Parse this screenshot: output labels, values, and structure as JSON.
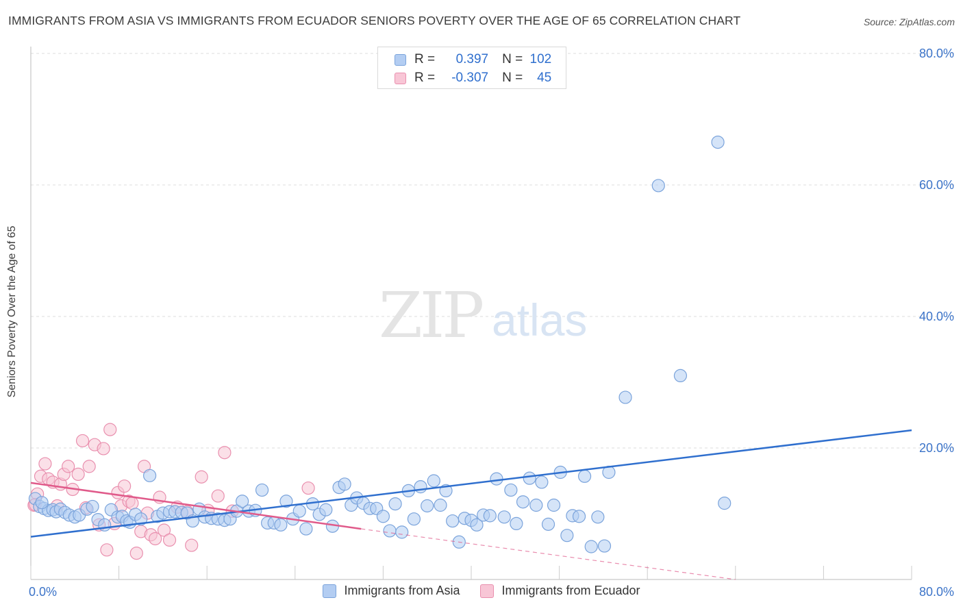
{
  "title": "IMMIGRANTS FROM ASIA VS IMMIGRANTS FROM ECUADOR SENIORS POVERTY OVER THE AGE OF 65 CORRELATION CHART",
  "source": "Source: ZipAtlas.com",
  "watermark": {
    "zip": "ZIP",
    "atlas": "atlas"
  },
  "stats": [
    {
      "r_label": "R =",
      "r_value": "0.397",
      "n_label": "N =",
      "n_value": "102"
    },
    {
      "r_label": "R =",
      "r_value": "-0.307",
      "n_label": "N =",
      "n_value": "45"
    }
  ],
  "legend": [
    {
      "label": "Immigrants from Asia"
    },
    {
      "label": "Immigrants from Ecuador"
    }
  ],
  "colors": {
    "asia_fill": "#b3cdf2",
    "asia_stroke": "#7aa3db",
    "asia_line": "#2f6fce",
    "ecuador_fill": "#f8c6d6",
    "ecuador_stroke": "#e98fae",
    "ecuador_line": "#e05a8a",
    "tick_text": "#3b73c8",
    "grid": "#dddddd"
  },
  "chart_data": {
    "type": "scatter",
    "title": "IMMIGRANTS FROM ASIA VS IMMIGRANTS FROM ECUADOR SENIORS POVERTY OVER THE AGE OF 65 CORRELATION CHART",
    "xlabel": "",
    "ylabel": "Seniors Poverty Over the Age of 65",
    "xlim": [
      0,
      80
    ],
    "ylim": [
      0,
      80
    ],
    "x_tick_labels": [
      "0.0%",
      "80.0%"
    ],
    "y_tick_labels": [
      "20.0%",
      "40.0%",
      "60.0%",
      "80.0%"
    ],
    "y_ticks": [
      20,
      40,
      60,
      80
    ],
    "legend_position": "bottom",
    "series": [
      {
        "name": "Immigrants from Asia",
        "r": 0.397,
        "n": 102,
        "trend": {
          "x": [
            0,
            80
          ],
          "y": [
            6.5,
            22.7
          ],
          "style": "solid"
        },
        "points": [
          [
            0.4,
            12.3
          ],
          [
            0.8,
            11.1
          ],
          [
            1.2,
            10.8
          ],
          [
            1.6,
            10.5
          ],
          [
            2.0,
            10.6
          ],
          [
            2.3,
            10.3
          ],
          [
            2.7,
            10.7
          ],
          [
            3.1,
            10.2
          ],
          [
            3.5,
            9.8
          ],
          [
            4.0,
            9.5
          ],
          [
            4.4,
            9.8
          ],
          [
            5.1,
            10.7
          ],
          [
            5.6,
            11.1
          ],
          [
            6.1,
            9.1
          ],
          [
            6.7,
            8.3
          ],
          [
            7.3,
            10.6
          ],
          [
            7.9,
            9.5
          ],
          [
            8.3,
            9.6
          ],
          [
            8.7,
            8.9
          ],
          [
            9.0,
            8.7
          ],
          [
            9.5,
            9.9
          ],
          [
            10.0,
            9.2
          ],
          [
            10.8,
            15.8
          ],
          [
            11.5,
            9.6
          ],
          [
            12.0,
            10.1
          ],
          [
            12.6,
            10.3
          ],
          [
            13.1,
            10.3
          ],
          [
            13.7,
            10.2
          ],
          [
            14.2,
            10.1
          ],
          [
            14.7,
            8.9
          ],
          [
            15.3,
            10.7
          ],
          [
            15.8,
            9.5
          ],
          [
            16.4,
            9.3
          ],
          [
            17.0,
            9.2
          ],
          [
            17.6,
            9.0
          ],
          [
            18.1,
            9.2
          ],
          [
            18.7,
            10.4
          ],
          [
            19.2,
            11.9
          ],
          [
            19.8,
            10.4
          ],
          [
            20.4,
            10.5
          ],
          [
            21.0,
            13.6
          ],
          [
            21.5,
            8.6
          ],
          [
            22.1,
            8.6
          ],
          [
            22.7,
            8.3
          ],
          [
            23.2,
            11.9
          ],
          [
            23.8,
            9.2
          ],
          [
            24.4,
            10.4
          ],
          [
            25.0,
            7.7
          ],
          [
            25.6,
            11.5
          ],
          [
            26.2,
            9.9
          ],
          [
            26.8,
            10.6
          ],
          [
            27.4,
            8.1
          ],
          [
            28.0,
            14.0
          ],
          [
            28.5,
            14.5
          ],
          [
            29.1,
            11.3
          ],
          [
            29.6,
            12.4
          ],
          [
            30.2,
            11.6
          ],
          [
            30.8,
            10.8
          ],
          [
            31.4,
            10.8
          ],
          [
            32.0,
            9.6
          ],
          [
            32.6,
            7.4
          ],
          [
            33.1,
            11.5
          ],
          [
            33.7,
            7.2
          ],
          [
            34.3,
            13.5
          ],
          [
            34.8,
            9.2
          ],
          [
            35.4,
            14.1
          ],
          [
            36.0,
            11.2
          ],
          [
            36.6,
            15.0
          ],
          [
            37.2,
            11.3
          ],
          [
            37.7,
            13.5
          ],
          [
            38.3,
            8.9
          ],
          [
            38.9,
            5.7
          ],
          [
            39.4,
            9.3
          ],
          [
            40.0,
            9.0
          ],
          [
            40.5,
            8.3
          ],
          [
            41.1,
            9.8
          ],
          [
            41.7,
            9.7
          ],
          [
            42.3,
            15.3
          ],
          [
            43.0,
            9.5
          ],
          [
            43.6,
            13.6
          ],
          [
            44.1,
            8.5
          ],
          [
            44.7,
            11.8
          ],
          [
            45.3,
            15.4
          ],
          [
            45.9,
            11.3
          ],
          [
            46.4,
            14.8
          ],
          [
            47.0,
            8.4
          ],
          [
            47.5,
            11.3
          ],
          [
            48.1,
            16.3
          ],
          [
            48.7,
            6.7
          ],
          [
            49.2,
            9.7
          ],
          [
            49.8,
            9.6
          ],
          [
            50.3,
            15.7
          ],
          [
            50.9,
            5.0
          ],
          [
            51.5,
            9.5
          ],
          [
            52.1,
            5.1
          ],
          [
            52.5,
            16.3
          ],
          [
            54.0,
            27.7
          ],
          [
            57.0,
            59.9
          ],
          [
            59.0,
            31.0
          ],
          [
            62.4,
            66.5
          ],
          [
            63.0,
            11.6
          ],
          [
            1.0,
            11.7
          ]
        ]
      },
      {
        "name": "Immigrants from Ecuador",
        "r": -0.307,
        "n": 45,
        "trend": {
          "x": [
            0,
            30
          ],
          "y": [
            14.7,
            7.7
          ],
          "style": "solid",
          "extension": {
            "x": [
              30,
              64
            ],
            "y": [
              7.7,
              0.0
            ],
            "style": "dashed"
          }
        },
        "points": [
          [
            0.3,
            11.3
          ],
          [
            0.6,
            13.0
          ],
          [
            0.9,
            15.7
          ],
          [
            1.3,
            17.6
          ],
          [
            1.6,
            15.3
          ],
          [
            2.0,
            14.8
          ],
          [
            2.4,
            11.2
          ],
          [
            2.7,
            14.5
          ],
          [
            3.0,
            16.0
          ],
          [
            3.4,
            17.2
          ],
          [
            3.8,
            13.7
          ],
          [
            4.3,
            16.0
          ],
          [
            4.7,
            21.1
          ],
          [
            5.0,
            10.9
          ],
          [
            5.3,
            17.2
          ],
          [
            5.8,
            20.5
          ],
          [
            6.2,
            8.3
          ],
          [
            6.6,
            19.9
          ],
          [
            6.9,
            4.5
          ],
          [
            7.2,
            22.8
          ],
          [
            7.6,
            8.5
          ],
          [
            7.9,
            13.2
          ],
          [
            8.2,
            11.2
          ],
          [
            8.5,
            14.2
          ],
          [
            8.9,
            11.9
          ],
          [
            9.2,
            11.6
          ],
          [
            9.6,
            4.0
          ],
          [
            10.0,
            7.3
          ],
          [
            10.3,
            17.2
          ],
          [
            10.6,
            10.1
          ],
          [
            10.9,
            6.8
          ],
          [
            11.3,
            6.2
          ],
          [
            11.7,
            12.5
          ],
          [
            12.1,
            7.5
          ],
          [
            12.6,
            6.0
          ],
          [
            13.3,
            11.0
          ],
          [
            14.2,
            10.3
          ],
          [
            14.6,
            5.2
          ],
          [
            15.5,
            15.6
          ],
          [
            16.1,
            10.5
          ],
          [
            17.0,
            12.7
          ],
          [
            17.6,
            19.3
          ],
          [
            18.3,
            10.4
          ],
          [
            25.2,
            13.9
          ],
          [
            0.4,
            11.4
          ]
        ]
      }
    ]
  }
}
